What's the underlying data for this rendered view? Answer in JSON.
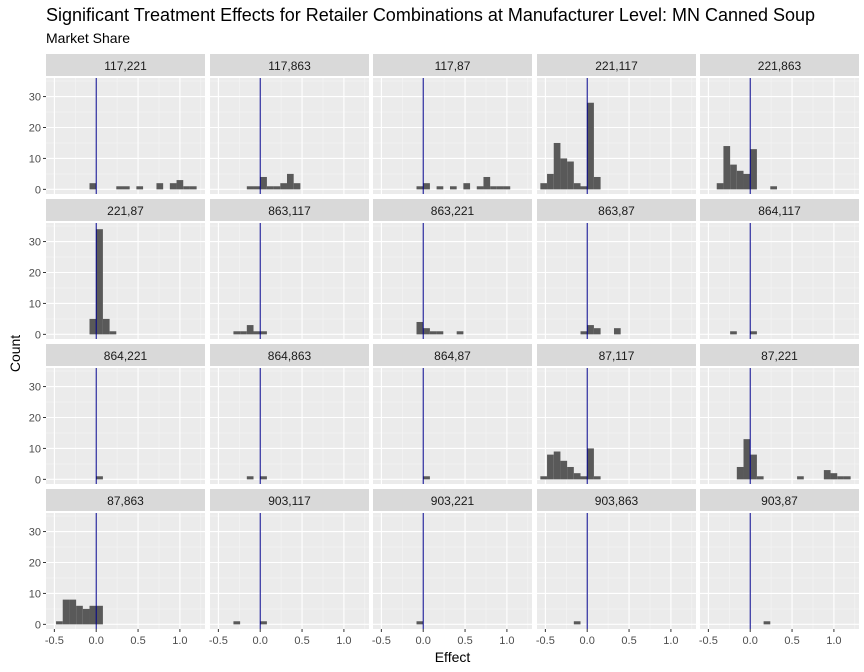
{
  "title": "Significant Treatment Effects for Retailer Combinations at Manufacturer Level: MN Canned Soup",
  "subtitle": "Market Share",
  "chart_data": {
    "type": "histogram",
    "title": "Significant Treatment Effects for Retailer Combinations at Manufacturer Level: MN Canned Soup",
    "subtitle": "Market Share",
    "xlabel": "Effect",
    "ylabel": "Count",
    "xlim": [
      -0.6,
      1.3
    ],
    "ylim": [
      -1.5,
      36
    ],
    "xticks": [
      -0.5,
      0.0,
      0.5,
      1.0
    ],
    "xtick_labels": [
      "-0.5",
      "0.0",
      "0.5",
      "1.0"
    ],
    "yticks": [
      0,
      10,
      20,
      30
    ],
    "ytick_labels": [
      "0",
      "10",
      "20",
      "30"
    ],
    "bin_width": 0.08,
    "reference_line": {
      "x": 0,
      "color": "#00008b"
    },
    "bar_color": "#595959",
    "grid": true,
    "facets": [
      {
        "label": "117,221",
        "bins": [
          [
            -0.04,
            2
          ],
          [
            0.28,
            1
          ],
          [
            0.36,
            1
          ],
          [
            0.52,
            1
          ],
          [
            0.76,
            2
          ],
          [
            0.92,
            2
          ],
          [
            1.0,
            3
          ],
          [
            1.08,
            1
          ],
          [
            1.16,
            1
          ]
        ]
      },
      {
        "label": "117,863",
        "bins": [
          [
            -0.12,
            1
          ],
          [
            -0.04,
            1
          ],
          [
            0.04,
            4
          ],
          [
            0.12,
            1
          ],
          [
            0.2,
            1
          ],
          [
            0.28,
            2
          ],
          [
            0.36,
            5
          ],
          [
            0.44,
            2
          ]
        ]
      },
      {
        "label": "117,87",
        "bins": [
          [
            -0.04,
            1
          ],
          [
            0.04,
            2
          ],
          [
            0.2,
            1
          ],
          [
            0.36,
            1
          ],
          [
            0.52,
            2
          ],
          [
            0.68,
            1
          ],
          [
            0.76,
            4
          ],
          [
            0.84,
            1
          ],
          [
            0.92,
            1
          ],
          [
            1.0,
            1
          ]
        ]
      },
      {
        "label": "221,117",
        "bins": [
          [
            -0.52,
            2
          ],
          [
            -0.44,
            5
          ],
          [
            -0.36,
            15
          ],
          [
            -0.28,
            10
          ],
          [
            -0.2,
            9
          ],
          [
            -0.12,
            2
          ],
          [
            -0.04,
            1
          ],
          [
            0.04,
            28
          ],
          [
            0.12,
            4
          ]
        ]
      },
      {
        "label": "221,863",
        "bins": [
          [
            -0.36,
            2
          ],
          [
            -0.28,
            14
          ],
          [
            -0.2,
            8
          ],
          [
            -0.12,
            6
          ],
          [
            -0.04,
            5
          ],
          [
            0.04,
            13
          ],
          [
            0.28,
            1
          ]
        ]
      },
      {
        "label": "221,87",
        "bins": [
          [
            -0.04,
            5
          ],
          [
            0.04,
            34
          ],
          [
            0.12,
            5
          ],
          [
            0.2,
            1
          ]
        ]
      },
      {
        "label": "863,117",
        "bins": [
          [
            -0.28,
            1
          ],
          [
            -0.2,
            1
          ],
          [
            -0.12,
            3
          ],
          [
            -0.04,
            1
          ],
          [
            0.04,
            1
          ]
        ]
      },
      {
        "label": "863,221",
        "bins": [
          [
            -0.04,
            4
          ],
          [
            0.04,
            2
          ],
          [
            0.12,
            1
          ],
          [
            0.2,
            1
          ],
          [
            0.44,
            1
          ]
        ]
      },
      {
        "label": "863,87",
        "bins": [
          [
            -0.04,
            1
          ],
          [
            0.04,
            3
          ],
          [
            0.12,
            2
          ],
          [
            0.36,
            2
          ]
        ]
      },
      {
        "label": "864,117",
        "bins": [
          [
            -0.2,
            1
          ],
          [
            0.04,
            1
          ]
        ]
      },
      {
        "label": "864,221",
        "bins": [
          [
            0.04,
            1
          ]
        ]
      },
      {
        "label": "864,863",
        "bins": [
          [
            -0.12,
            1
          ],
          [
            0.04,
            1
          ]
        ]
      },
      {
        "label": "864,87",
        "bins": [
          [
            0.04,
            1
          ]
        ]
      },
      {
        "label": "87,117",
        "bins": [
          [
            -0.52,
            1
          ],
          [
            -0.44,
            8
          ],
          [
            -0.36,
            9
          ],
          [
            -0.28,
            6
          ],
          [
            -0.2,
            4
          ],
          [
            -0.12,
            2
          ],
          [
            -0.04,
            1
          ],
          [
            0.04,
            10
          ],
          [
            0.12,
            1
          ]
        ]
      },
      {
        "label": "87,221",
        "bins": [
          [
            -0.12,
            4
          ],
          [
            -0.04,
            13
          ],
          [
            0.04,
            8
          ],
          [
            0.12,
            1
          ],
          [
            0.6,
            1
          ],
          [
            0.92,
            3
          ],
          [
            1.0,
            2
          ],
          [
            1.08,
            1
          ],
          [
            1.16,
            1
          ]
        ]
      },
      {
        "label": "87,863",
        "bins": [
          [
            -0.44,
            1
          ],
          [
            -0.36,
            8
          ],
          [
            -0.28,
            8
          ],
          [
            -0.2,
            6
          ],
          [
            -0.12,
            5
          ],
          [
            -0.04,
            6
          ],
          [
            0.04,
            6
          ]
        ]
      },
      {
        "label": "903,117",
        "bins": [
          [
            -0.28,
            1
          ],
          [
            0.04,
            1
          ]
        ]
      },
      {
        "label": "903,221",
        "bins": [
          [
            -0.04,
            1
          ]
        ]
      },
      {
        "label": "903,863",
        "bins": [
          [
            -0.12,
            1
          ]
        ]
      },
      {
        "label": "903,87",
        "bins": [
          [
            0.2,
            1
          ]
        ]
      }
    ]
  }
}
